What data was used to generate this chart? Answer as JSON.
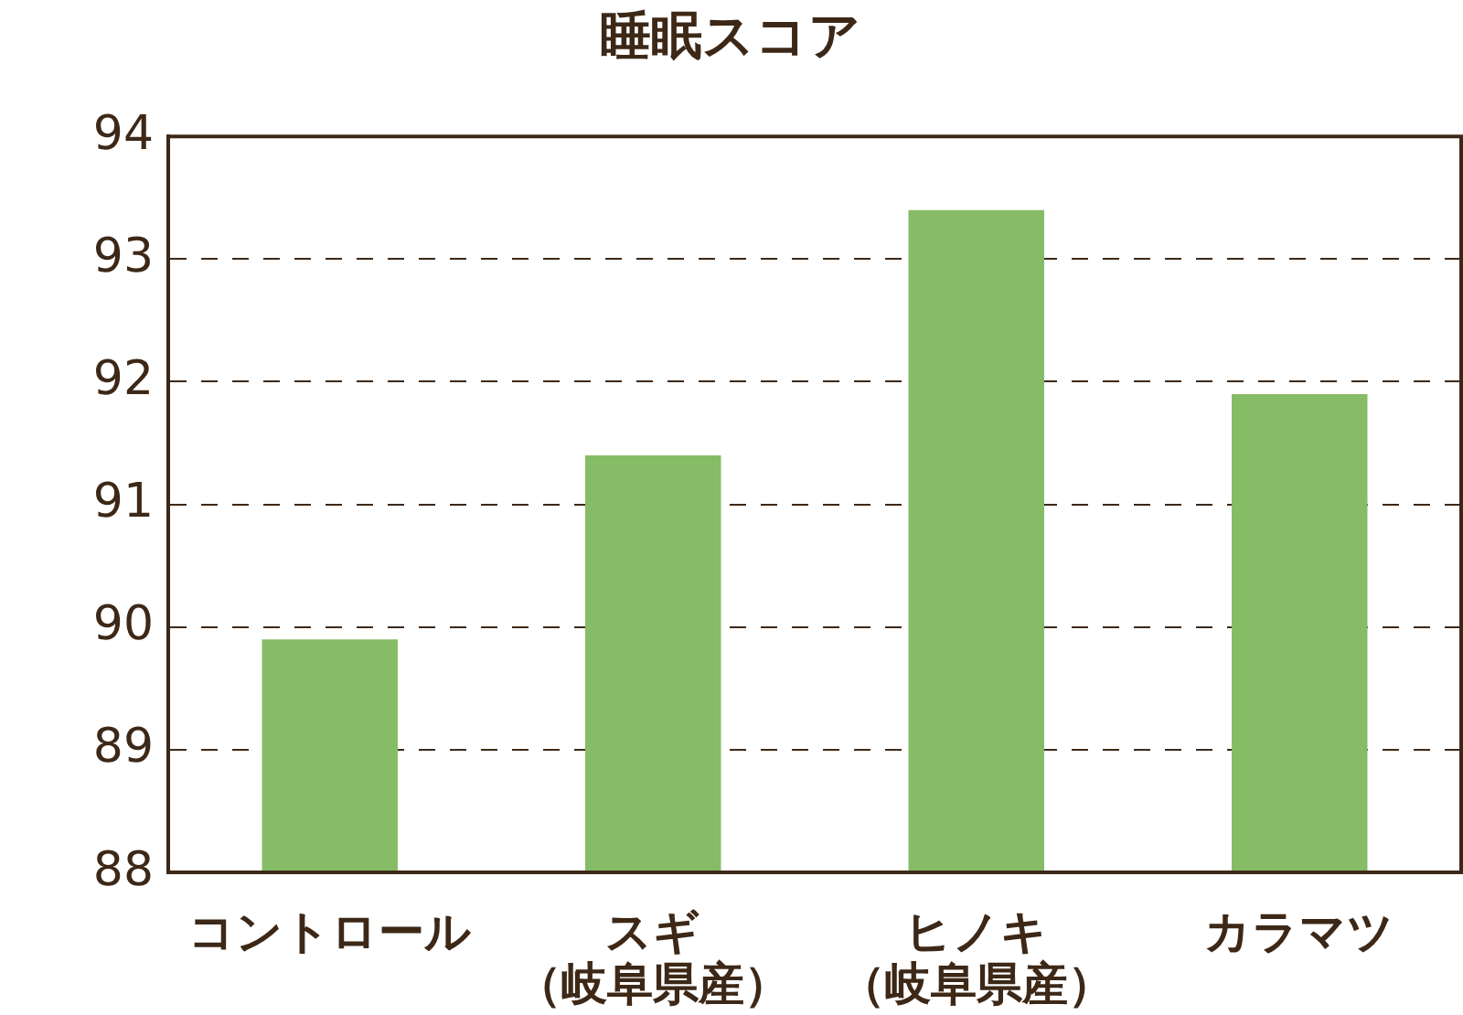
{
  "chart_data": {
    "type": "bar",
    "title": "睡眠スコア",
    "categories": [
      "コントロール",
      "スギ（岐阜県産）",
      "ヒノキ（岐阜県産）",
      "カラマツ"
    ],
    "values": [
      89.9,
      91.4,
      93.4,
      91.9
    ],
    "color": "#86bc66",
    "ylim": [
      88,
      94
    ],
    "yticks": [
      88,
      89,
      90,
      91,
      92,
      93,
      94
    ],
    "grid": "y"
  }
}
